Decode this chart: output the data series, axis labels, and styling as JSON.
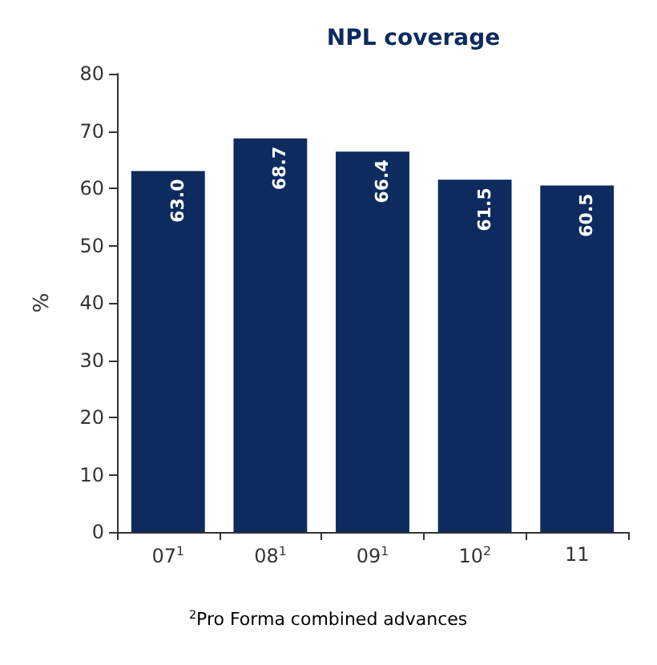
{
  "chart_data": {
    "type": "bar",
    "title": "NPL coverage",
    "ylabel": "%",
    "categories": [
      "07$^{1}$",
      "08$^{1}$",
      "09$^{1}$",
      "10$^{2}$",
      "11"
    ],
    "values": [
      63.0,
      68.7,
      66.4,
      61.5,
      60.5
    ],
    "value_labels": [
      "63.0",
      "68.7",
      "66.4",
      "61.5",
      "60.5"
    ],
    "color": "#0d2b5e",
    "ylim": [
      0,
      80
    ],
    "yticks": [
      0,
      10,
      20,
      30,
      40,
      50,
      60,
      70,
      80
    ],
    "grid": false,
    "annotations": [
      "$^{2}$Pro Forma combined advances"
    ]
  }
}
